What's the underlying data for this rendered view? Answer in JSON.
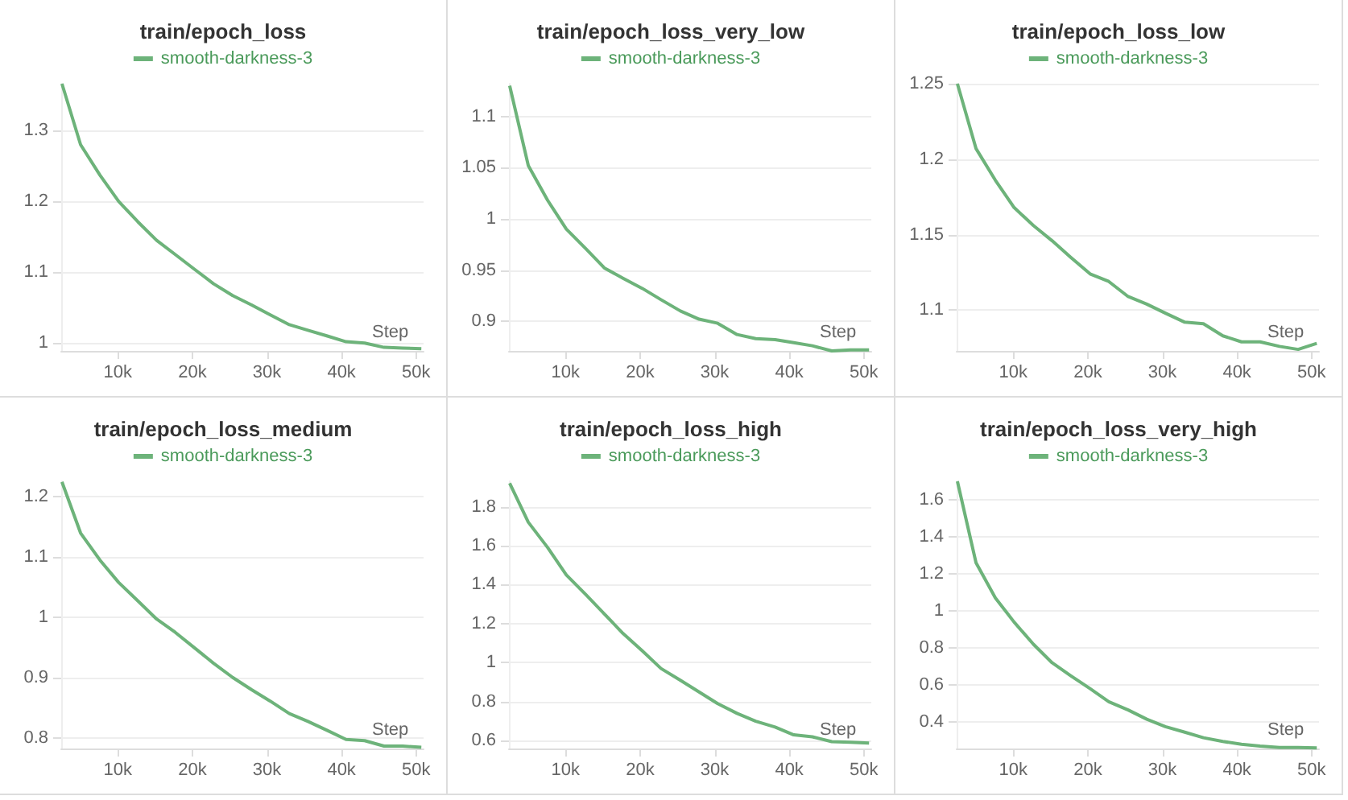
{
  "chart_data": [
    {
      "type": "line",
      "title": "train/epoch_loss",
      "xlabel": "Step",
      "legend": "top",
      "grid": "y",
      "x": [
        2500,
        5000,
        7600,
        10100,
        12700,
        15200,
        17700,
        20300,
        22800,
        25400,
        27900,
        30400,
        33000,
        35500,
        38100,
        40600,
        43100,
        45700,
        48200,
        50700
      ],
      "series": [
        {
          "name": "smooth-darkness-3",
          "color": "#6db37a",
          "values": [
            1.366,
            1.28,
            1.237,
            1.2,
            1.171,
            1.145,
            1.125,
            1.104,
            1.084,
            1.067,
            1.054,
            1.04,
            1.026,
            1.018,
            1.01,
            1.002,
            1.0,
            0.994,
            0.993,
            0.992
          ]
        }
      ],
      "xlim": [
        2400,
        51000
      ],
      "xticks": [
        {
          "value": 10000,
          "label": "10k"
        },
        {
          "value": 20000,
          "label": "20k"
        },
        {
          "value": 30000,
          "label": "30k"
        },
        {
          "value": 40000,
          "label": "40k"
        },
        {
          "value": 50000,
          "label": "50k"
        }
      ],
      "ylim": [
        0.989,
        1.366
      ],
      "yticks": [
        1,
        1.1,
        1.2,
        1.3
      ]
    },
    {
      "type": "line",
      "title": "train/epoch_loss_very_low",
      "xlabel": "Step",
      "legend": "top",
      "grid": "y",
      "x": [
        2500,
        5000,
        7600,
        10100,
        12700,
        15200,
        17700,
        20300,
        22800,
        25400,
        27900,
        30400,
        33000,
        35500,
        38100,
        40600,
        43100,
        45700,
        48200,
        50700
      ],
      "series": [
        {
          "name": "smooth-darkness-3",
          "color": "#6db37a",
          "values": [
            1.13,
            1.052,
            1.018,
            0.99,
            0.971,
            0.952,
            0.942,
            0.932,
            0.921,
            0.91,
            0.902,
            0.898,
            0.887,
            0.883,
            0.882,
            0.879,
            0.876,
            0.871,
            0.872,
            0.872
          ]
        }
      ],
      "xlim": [
        2400,
        51000
      ],
      "xticks": [
        {
          "value": 10000,
          "label": "10k"
        },
        {
          "value": 20000,
          "label": "20k"
        },
        {
          "value": 30000,
          "label": "30k"
        },
        {
          "value": 40000,
          "label": "40k"
        },
        {
          "value": 50000,
          "label": "50k"
        }
      ],
      "ylim": [
        0.871,
        1.132
      ],
      "yticks": [
        0.9,
        0.95,
        1,
        1.05,
        1.1
      ]
    },
    {
      "type": "line",
      "title": "train/epoch_loss_low",
      "xlabel": "Step",
      "legend": "top",
      "grid": "y",
      "x": [
        2500,
        5000,
        7600,
        10100,
        12700,
        15200,
        17700,
        20300,
        22800,
        25400,
        27900,
        30400,
        33000,
        35500,
        38100,
        40600,
        43100,
        45700,
        48200,
        50700
      ],
      "series": [
        {
          "name": "smooth-darkness-3",
          "color": "#6db37a",
          "values": [
            1.25,
            1.207,
            1.186,
            1.168,
            1.156,
            1.146,
            1.135,
            1.124,
            1.119,
            1.109,
            1.104,
            1.098,
            1.092,
            1.091,
            1.083,
            1.079,
            1.079,
            1.076,
            1.074,
            1.078
          ]
        }
      ],
      "xlim": [
        2400,
        51000
      ],
      "xticks": [
        {
          "value": 10000,
          "label": "10k"
        },
        {
          "value": 20000,
          "label": "20k"
        },
        {
          "value": 30000,
          "label": "30k"
        },
        {
          "value": 40000,
          "label": "40k"
        },
        {
          "value": 50000,
          "label": "50k"
        }
      ],
      "ylim": [
        1.073,
        1.25
      ],
      "yticks": [
        1.1,
        1.15,
        1.2,
        1.25
      ]
    },
    {
      "type": "line",
      "title": "train/epoch_loss_medium",
      "xlabel": "Step",
      "legend": "top",
      "grid": "y",
      "x": [
        2500,
        5000,
        7600,
        10100,
        12700,
        15200,
        17700,
        20300,
        22800,
        25400,
        27900,
        30400,
        33000,
        35500,
        38100,
        40600,
        43100,
        45700,
        48200,
        50700
      ],
      "series": [
        {
          "name": "smooth-darkness-3",
          "color": "#6db37a",
          "values": [
            1.225,
            1.14,
            1.095,
            1.058,
            1.027,
            0.997,
            0.975,
            0.949,
            0.924,
            0.9,
            0.88,
            0.861,
            0.84,
            0.827,
            0.812,
            0.797,
            0.795,
            0.786,
            0.786,
            0.784
          ]
        }
      ],
      "xlim": [
        2400,
        51000
      ],
      "xticks": [
        {
          "value": 10000,
          "label": "10k"
        },
        {
          "value": 20000,
          "label": "20k"
        },
        {
          "value": 30000,
          "label": "30k"
        },
        {
          "value": 40000,
          "label": "40k"
        },
        {
          "value": 50000,
          "label": "50k"
        }
      ],
      "ylim": [
        0.782,
        1.226
      ],
      "yticks": [
        0.8,
        0.9,
        1,
        1.1,
        1.2
      ]
    },
    {
      "type": "line",
      "title": "train/epoch_loss_high",
      "xlabel": "Step",
      "legend": "top",
      "grid": "y",
      "x": [
        2500,
        5000,
        7600,
        10100,
        12700,
        15200,
        17700,
        20300,
        22800,
        25400,
        27900,
        30400,
        33000,
        35500,
        38100,
        40600,
        43100,
        45700,
        48200,
        50700
      ],
      "series": [
        {
          "name": "smooth-darkness-3",
          "color": "#6db37a",
          "values": [
            1.92,
            1.72,
            1.59,
            1.45,
            1.35,
            1.25,
            1.15,
            1.06,
            0.97,
            0.91,
            0.85,
            0.79,
            0.74,
            0.7,
            0.67,
            0.63,
            0.62,
            0.595,
            0.592,
            0.588
          ]
        }
      ],
      "xlim": [
        2400,
        51000
      ],
      "xticks": [
        {
          "value": 10000,
          "label": "10k"
        },
        {
          "value": 20000,
          "label": "20k"
        },
        {
          "value": 30000,
          "label": "30k"
        },
        {
          "value": 40000,
          "label": "40k"
        },
        {
          "value": 50000,
          "label": "50k"
        }
      ],
      "ylim": [
        0.56,
        1.93
      ],
      "yticks": [
        0.6,
        0.8,
        1,
        1.2,
        1.4,
        1.6,
        1.8
      ]
    },
    {
      "type": "line",
      "title": "train/epoch_loss_very_high",
      "xlabel": "Step",
      "legend": "top",
      "grid": "y",
      "x": [
        2500,
        5000,
        7600,
        10100,
        12700,
        15200,
        17700,
        20300,
        22800,
        25400,
        27900,
        30400,
        33000,
        35500,
        38100,
        40600,
        43100,
        45700,
        48200,
        50700
      ],
      "series": [
        {
          "name": "smooth-darkness-3",
          "color": "#6db37a",
          "values": [
            1.7,
            1.26,
            1.07,
            0.94,
            0.82,
            0.72,
            0.65,
            0.58,
            0.51,
            0.465,
            0.415,
            0.375,
            0.345,
            0.315,
            0.295,
            0.28,
            0.27,
            0.262,
            0.262,
            0.26
          ]
        }
      ],
      "xlim": [
        2400,
        51000
      ],
      "xticks": [
        {
          "value": 10000,
          "label": "10k"
        },
        {
          "value": 20000,
          "label": "20k"
        },
        {
          "value": 30000,
          "label": "30k"
        },
        {
          "value": 40000,
          "label": "40k"
        },
        {
          "value": 50000,
          "label": "50k"
        }
      ],
      "ylim": [
        0.257,
        1.7
      ],
      "yticks": [
        0.4,
        0.6,
        0.8,
        1,
        1.2,
        1.4,
        1.6
      ]
    }
  ]
}
